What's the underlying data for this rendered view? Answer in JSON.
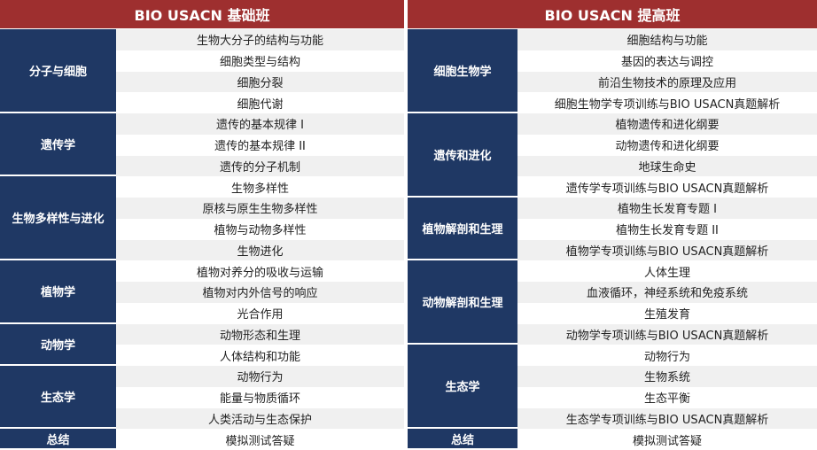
{
  "tables": [
    {
      "title": "BIO USACN 基础班",
      "groups": [
        {
          "name": "分子与细胞",
          "items": [
            "生物大分子的结构与功能",
            "细胞类型与结构",
            "细胞分裂",
            "细胞代谢"
          ]
        },
        {
          "name": "遗传学",
          "items": [
            "遗传的基本规律 I",
            "遗传的基本规律 II",
            "遗传的分子机制"
          ]
        },
        {
          "name": "生物多样性与进化",
          "items": [
            "生物多样性",
            "原核与原生生物多样性",
            "植物与动物多样性",
            "生物进化"
          ]
        },
        {
          "name": "植物学",
          "items": [
            "植物对养分的吸收与运输",
            "植物对内外信号的响应",
            "光合作用"
          ]
        },
        {
          "name": "动物学",
          "items": [
            "动物形态和生理",
            "人体结构和功能"
          ]
        },
        {
          "name": "生态学",
          "items": [
            "动物行为",
            "能量与物质循环",
            "人类活动与生态保护"
          ]
        },
        {
          "name": "总结",
          "items": [
            "模拟测试答疑"
          ]
        }
      ]
    },
    {
      "title": "BIO USACN 提高班",
      "groups": [
        {
          "name": "细胞生物学",
          "items": [
            "细胞结构与功能",
            "基因的表达与调控",
            "前沿生物技术的原理及应用",
            "细胞生物学专项训练与BIO USACN真题解析"
          ]
        },
        {
          "name": "遗传和进化",
          "items": [
            "植物遗传和进化纲要",
            "动物遗传和进化纲要",
            "地球生命史",
            "遗传学专项训练与BIO USACN真题解析"
          ]
        },
        {
          "name": "植物解剖和生理",
          "items": [
            "植物生长发育专题 I",
            "植物生长发育专题 II",
            "植物学专项训练与BIO USACN真题解析"
          ]
        },
        {
          "name": "动物解剖和生理",
          "items": [
            "人体生理",
            "血液循环，神经系统和免疫系统",
            "生殖发育",
            "动物学专项训练与BIO USACN真题解析"
          ]
        },
        {
          "name": "生态学",
          "items": [
            "动物行为",
            "生物系统",
            "生态平衡",
            "生态学专项训练与BIO USACN真题解析"
          ]
        },
        {
          "name": "总结",
          "items": [
            "模拟测试答疑"
          ]
        }
      ]
    }
  ]
}
